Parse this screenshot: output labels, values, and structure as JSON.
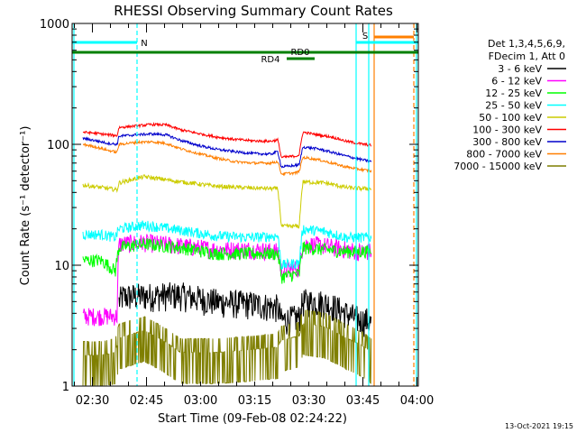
{
  "chart_data": {
    "type": "line",
    "title": "RHESSI Observing Summary Count Rates",
    "xlabel": "Start Time (09-Feb-08 02:24:22)",
    "ylabel": "Count Rate (s⁻¹ detector⁻¹)",
    "yscale": "log",
    "ylim": [
      1,
      1000
    ],
    "xlim_minutes": [
      0,
      96
    ],
    "x_ticks": [
      {
        "t": 5.63,
        "label": "02:30"
      },
      {
        "t": 20.63,
        "label": "02:45"
      },
      {
        "t": 35.63,
        "label": "03:00"
      },
      {
        "t": 50.63,
        "label": "03:15"
      },
      {
        "t": 65.63,
        "label": "03:30"
      },
      {
        "t": 80.63,
        "label": "03:45"
      },
      {
        "t": 95.63,
        "label": "04:00"
      }
    ],
    "y_ticks": [
      {
        "v": 1,
        "label": "1"
      },
      {
        "v": 10,
        "label": "10"
      },
      {
        "v": 100,
        "label": "100"
      },
      {
        "v": 1000,
        "label": "1000"
      }
    ],
    "legend": {
      "position": "right",
      "header": [
        "Det 1,3,4,5,6,9,",
        "FDecim 1, Att 0"
      ]
    },
    "series": [
      {
        "name": "3 - 6 keV",
        "color": "#000000",
        "points": [
          [
            13,
            5
          ],
          [
            14,
            5.5
          ],
          [
            20,
            5.6
          ],
          [
            30,
            5.7
          ],
          [
            40,
            5
          ],
          [
            50,
            4.8
          ],
          [
            57,
            4.5
          ],
          [
            58,
            3.5
          ],
          [
            63,
            3.7
          ],
          [
            64,
            5
          ],
          [
            68,
            5
          ],
          [
            71,
            4.8
          ],
          [
            76,
            4
          ],
          [
            80,
            3.5
          ],
          [
            82,
            3.5
          ],
          [
            83,
            3.3
          ]
        ]
      },
      {
        "name": "6 - 12 keV",
        "color": "#ff00ff",
        "points": [
          [
            3,
            3.8
          ],
          [
            8,
            3.8
          ],
          [
            12.5,
            3.8
          ],
          [
            13,
            15
          ],
          [
            20,
            15.5
          ],
          [
            30,
            14.5
          ],
          [
            40,
            13.5
          ],
          [
            50,
            13.5
          ],
          [
            57,
            13
          ],
          [
            58,
            9
          ],
          [
            63,
            9.5
          ],
          [
            64,
            15
          ],
          [
            70,
            14.5
          ],
          [
            76,
            13.5
          ],
          [
            80,
            13
          ],
          [
            83,
            13
          ]
        ]
      },
      {
        "name": "12 - 25 keV",
        "color": "#00ff00",
        "points": [
          [
            3,
            11
          ],
          [
            8,
            11
          ],
          [
            12,
            9
          ],
          [
            13,
            14
          ],
          [
            20,
            15
          ],
          [
            30,
            14
          ],
          [
            40,
            12.5
          ],
          [
            50,
            12.5
          ],
          [
            57,
            12.5
          ],
          [
            58,
            8
          ],
          [
            63,
            8.5
          ],
          [
            64,
            14
          ],
          [
            70,
            13.5
          ],
          [
            76,
            13
          ],
          [
            80,
            13
          ],
          [
            83,
            13
          ]
        ]
      },
      {
        "name": "25 - 50 keV",
        "color": "#00ffff",
        "points": [
          [
            3,
            18
          ],
          [
            8,
            18
          ],
          [
            12,
            17
          ],
          [
            13,
            20
          ],
          [
            20,
            21.5
          ],
          [
            30,
            19.5
          ],
          [
            40,
            17.5
          ],
          [
            50,
            17
          ],
          [
            57,
            17.5
          ],
          [
            58,
            10
          ],
          [
            63,
            10.5
          ],
          [
            64,
            20
          ],
          [
            70,
            19
          ],
          [
            76,
            17
          ],
          [
            80,
            17
          ],
          [
            83,
            17
          ]
        ]
      },
      {
        "name": "50 - 100 keV",
        "color": "#cccc00",
        "points": [
          [
            3,
            46
          ],
          [
            8,
            44
          ],
          [
            12.5,
            42
          ],
          [
            13,
            48
          ],
          [
            20,
            54
          ],
          [
            30,
            49
          ],
          [
            40,
            45
          ],
          [
            50,
            43.5
          ],
          [
            57,
            43
          ],
          [
            58,
            21
          ],
          [
            63,
            21
          ],
          [
            64,
            49
          ],
          [
            70,
            48
          ],
          [
            76,
            44
          ],
          [
            80,
            43
          ],
          [
            83,
            43
          ]
        ]
      },
      {
        "name": "100 - 300 keV",
        "color": "#ff0000",
        "points": [
          [
            3,
            126
          ],
          [
            6,
            124
          ],
          [
            10,
            120
          ],
          [
            12.5,
            118
          ],
          [
            13,
            138
          ],
          [
            18,
            142
          ],
          [
            22,
            146
          ],
          [
            26,
            145
          ],
          [
            30,
            132
          ],
          [
            35,
            123
          ],
          [
            40,
            115
          ],
          [
            45,
            110
          ],
          [
            50,
            107
          ],
          [
            55,
            106
          ],
          [
            57,
            109
          ],
          [
            58,
            78
          ],
          [
            62,
            80
          ],
          [
            63,
            82
          ],
          [
            64,
            126
          ],
          [
            68,
            120
          ],
          [
            72,
            115
          ],
          [
            76,
            106
          ],
          [
            80,
            101
          ],
          [
            83,
            98
          ]
        ]
      },
      {
        "name": "300 - 800 keV",
        "color": "#0000cc",
        "points": [
          [
            3,
            112
          ],
          [
            6,
            108
          ],
          [
            10,
            102
          ],
          [
            12.5,
            100
          ],
          [
            13,
            117
          ],
          [
            18,
            120
          ],
          [
            22,
            122
          ],
          [
            26,
            120
          ],
          [
            30,
            108
          ],
          [
            35,
            98
          ],
          [
            40,
            91
          ],
          [
            45,
            87
          ],
          [
            50,
            84
          ],
          [
            55,
            83
          ],
          [
            57,
            87
          ],
          [
            58,
            65
          ],
          [
            62,
            67
          ],
          [
            63,
            68
          ],
          [
            64,
            95
          ],
          [
            68,
            92
          ],
          [
            72,
            86
          ],
          [
            76,
            80
          ],
          [
            80,
            75
          ],
          [
            83,
            72
          ]
        ]
      },
      {
        "name": "800 - 7000 keV",
        "color": "#ff7f00",
        "points": [
          [
            3,
            100
          ],
          [
            6,
            96
          ],
          [
            10,
            89
          ],
          [
            12.5,
            86
          ],
          [
            13,
            100
          ],
          [
            18,
            104
          ],
          [
            22,
            105
          ],
          [
            26,
            102
          ],
          [
            30,
            92
          ],
          [
            35,
            84
          ],
          [
            40,
            77
          ],
          [
            45,
            72
          ],
          [
            50,
            70
          ],
          [
            55,
            70
          ],
          [
            57,
            72
          ],
          [
            58,
            57
          ],
          [
            62,
            58
          ],
          [
            63,
            60
          ],
          [
            64,
            78
          ],
          [
            68,
            75
          ],
          [
            72,
            70
          ],
          [
            76,
            65
          ],
          [
            80,
            62
          ],
          [
            83,
            60
          ]
        ]
      },
      {
        "name": "7000 - 15000 keV",
        "color": "#7f7f00",
        "points": [
          [
            3,
            1.8
          ],
          [
            8,
            1.8
          ],
          [
            12,
            1.9
          ],
          [
            13,
            2.5
          ],
          [
            20,
            2.9
          ],
          [
            30,
            1.9
          ],
          [
            40,
            1.9
          ],
          [
            50,
            2
          ],
          [
            57,
            2.1
          ],
          [
            58,
            2.4
          ],
          [
            63,
            2.6
          ],
          [
            64,
            3.3
          ],
          [
            70,
            3.1
          ],
          [
            76,
            2.5
          ],
          [
            80,
            2.2
          ],
          [
            83,
            1.9
          ]
        ]
      }
    ],
    "attenuator_bars": [
      {
        "label": "N",
        "color": "#00ffff"
      },
      {
        "label": "S",
        "color": "#ff7f00"
      },
      {
        "label": "RD0",
        "color": "#008000"
      },
      {
        "label": "RD4",
        "color": "#008000"
      }
    ],
    "annotation": "13-Oct-2021 19:15"
  }
}
